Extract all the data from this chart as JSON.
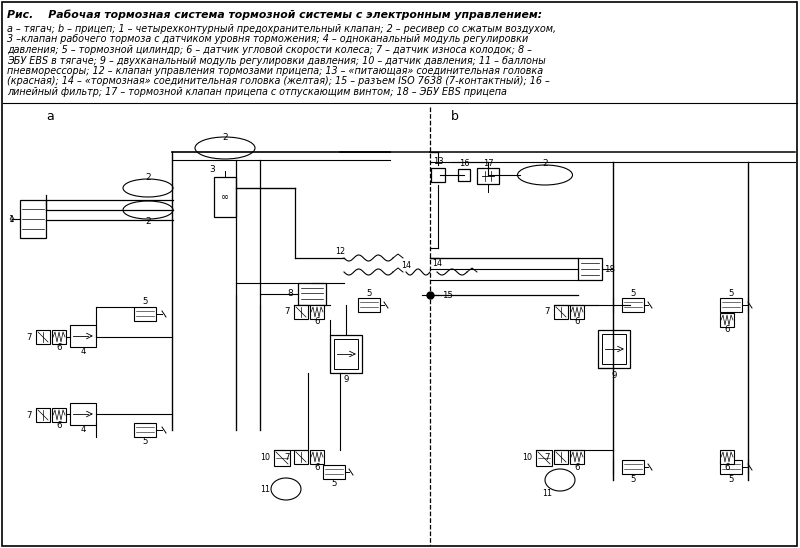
{
  "bg_color": "#ffffff",
  "title_bold_italic": "Рис.    Рабочая тормозная система тормозной системы с электронным управлением:",
  "caption_lines": [
    "а – тягач; b – прицеп; 1 – четырехконтурный предохранительный клапан; 2 – ресивер со сжатым воздухом,",
    "3 –клапан рабочего тормоза с датчиком уровня торможения; 4 – одноканальный модуль регулировки",
    "давления; 5 – тормозной цилиндр; 6 – датчик угловой скорости колеса; 7 – датчик износа колодок; 8 –",
    "ЭБУ EBS в тягаче; 9 – двухканальный модуль регулировки давления; 10 – датчик давления; 11 – баллоны",
    "пневморессоры; 12 – клапан управления тормозами прицепа; 13 – «питающая» соединительная головка",
    "(красная); 14 – «тормозная» соединительная головка (желтая); 15 – разъем ISO 7638 (7-контактный); 16 –",
    "линейный фильтр; 17 – тормозной клапан прицепа с отпускающим винтом; 18 – ЭБУ EBS прицепа"
  ],
  "fig_width": 8.0,
  "fig_height": 5.48
}
